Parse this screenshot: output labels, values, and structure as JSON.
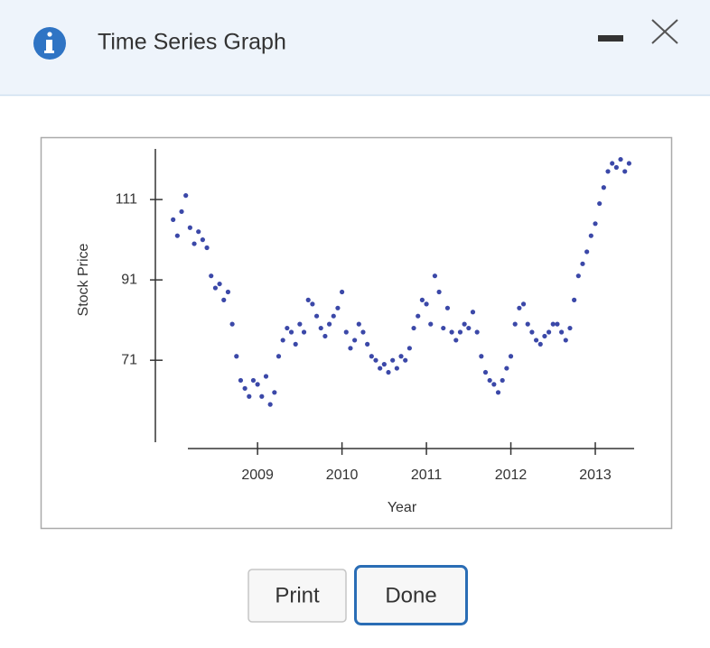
{
  "header": {
    "title": "Time Series Graph"
  },
  "buttons": [
    "Print",
    "Done"
  ],
  "chart_data": {
    "type": "scatter",
    "xlabel": "Year",
    "ylabel": "Stock Price",
    "xlim": [
      2007.95,
      2013.46
    ],
    "xticks": [
      2009,
      2010,
      2011,
      2012,
      2013
    ],
    "ylim": [
      50.6,
      123.6
    ],
    "yticks": [
      71,
      91,
      111
    ],
    "color": "#3b48a8",
    "x": [
      2008.0,
      2008.05,
      2008.1,
      2008.15,
      2008.2,
      2008.25,
      2008.3,
      2008.35,
      2008.4,
      2008.45,
      2008.5,
      2008.55,
      2008.6,
      2008.65,
      2008.7,
      2008.75,
      2008.8,
      2008.85,
      2008.9,
      2008.95,
      2009.0,
      2009.05,
      2009.1,
      2009.15,
      2009.2,
      2009.25,
      2009.3,
      2009.35,
      2009.4,
      2009.45,
      2009.5,
      2009.55,
      2009.6,
      2009.65,
      2009.7,
      2009.75,
      2009.8,
      2009.85,
      2009.9,
      2009.95,
      2010.0,
      2010.05,
      2010.1,
      2010.15,
      2010.2,
      2010.25,
      2010.3,
      2010.35,
      2010.4,
      2010.45,
      2010.5,
      2010.55,
      2010.6,
      2010.65,
      2010.7,
      2010.75,
      2010.8,
      2010.85,
      2010.9,
      2010.95,
      2011.0,
      2011.05,
      2011.1,
      2011.15,
      2011.2,
      2011.25,
      2011.3,
      2011.35,
      2011.4,
      2011.45,
      2011.5,
      2011.55,
      2011.6,
      2011.65,
      2011.7,
      2011.75,
      2011.8,
      2011.85,
      2011.9,
      2011.95,
      2012.0,
      2012.05,
      2012.1,
      2012.15,
      2012.2,
      2012.25,
      2012.3,
      2012.35,
      2012.4,
      2012.45,
      2012.5,
      2012.55,
      2012.6,
      2012.65,
      2012.7,
      2012.75,
      2012.8,
      2012.85,
      2012.9,
      2012.95,
      2013.0,
      2013.05,
      2013.1,
      2013.15,
      2013.2,
      2013.25,
      2013.3,
      2013.35,
      2013.4
    ],
    "values": [
      106,
      102,
      108,
      112,
      104,
      100,
      103,
      101,
      99,
      92,
      89,
      90,
      86,
      88,
      80,
      72,
      66,
      64,
      62,
      66,
      65,
      62,
      67,
      60,
      63,
      72,
      76,
      79,
      78,
      75,
      80,
      78,
      86,
      85,
      82,
      79,
      77,
      80,
      82,
      84,
      88,
      78,
      74,
      76,
      80,
      78,
      75,
      72,
      71,
      69,
      70,
      68,
      71,
      69,
      72,
      71,
      74,
      79,
      82,
      86,
      85,
      80,
      92,
      88,
      79,
      84,
      78,
      76,
      78,
      80,
      79,
      83,
      78,
      72,
      68,
      66,
      65,
      63,
      66,
      69,
      72,
      80,
      84,
      85,
      80,
      78,
      76,
      75,
      77,
      78,
      80,
      80,
      78,
      76,
      79,
      86,
      92,
      95,
      98,
      102,
      105,
      110,
      114,
      118,
      120,
      119,
      121,
      118,
      120
    ]
  }
}
